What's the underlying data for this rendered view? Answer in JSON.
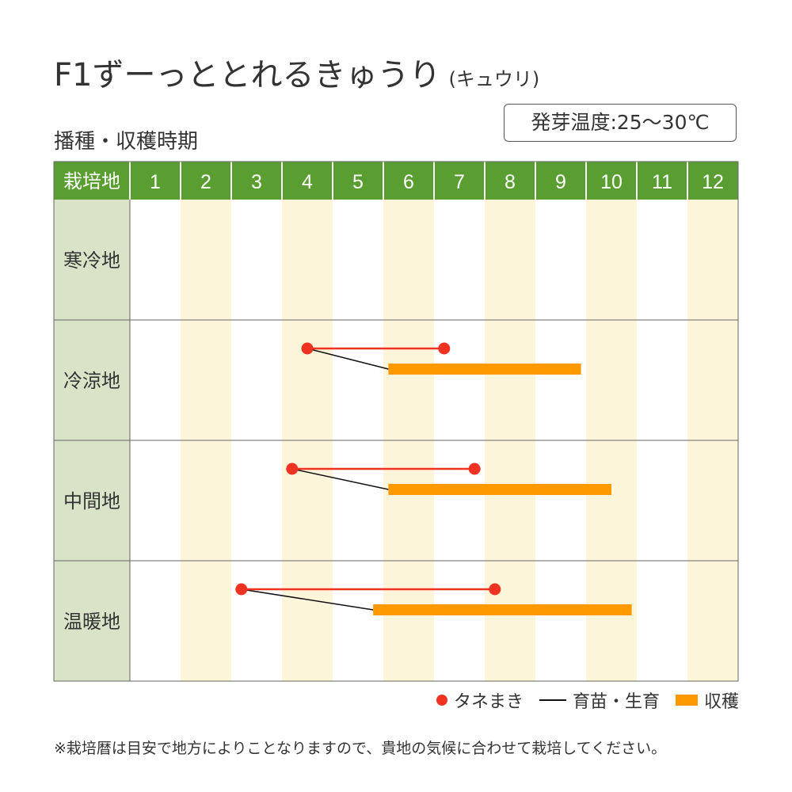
{
  "title": {
    "main": "F1ずーっととれるきゅうり",
    "sub": "(キュウリ)"
  },
  "germination": "発芽温度:25〜30℃",
  "section_title": "播種・収穫時期",
  "legend": {
    "sowing": "タネまき",
    "growing": "育苗・生育",
    "harvest": "収穫"
  },
  "note": "※栽培暦は目安で地方によりことなりますので、貴地の気候に合わせて栽培してください。",
  "colors": {
    "header_green": "#5a9e32",
    "region_cell": "#d8e3c8",
    "stripe": "#fdf5da",
    "sowing": "#ee3322",
    "harvest": "#ff9900",
    "growing_line": "#111111"
  },
  "chart_data": {
    "type": "gantt",
    "column_header": "栽培地",
    "months": [
      "1",
      "2",
      "3",
      "4",
      "5",
      "6",
      "7",
      "8",
      "9",
      "10",
      "11",
      "12"
    ],
    "regions": [
      {
        "name": "寒冷地",
        "sowing": null,
        "harvest": null
      },
      {
        "name": "冷涼地",
        "sowing": [
          4.5,
          7.2
        ],
        "harvest": [
          6.1,
          9.9
        ]
      },
      {
        "name": "中間地",
        "sowing": [
          4.2,
          7.8
        ],
        "harvest": [
          6.1,
          10.5
        ]
      },
      {
        "name": "温暖地",
        "sowing": [
          3.2,
          8.2
        ],
        "harvest": [
          5.8,
          10.9
        ]
      }
    ]
  }
}
